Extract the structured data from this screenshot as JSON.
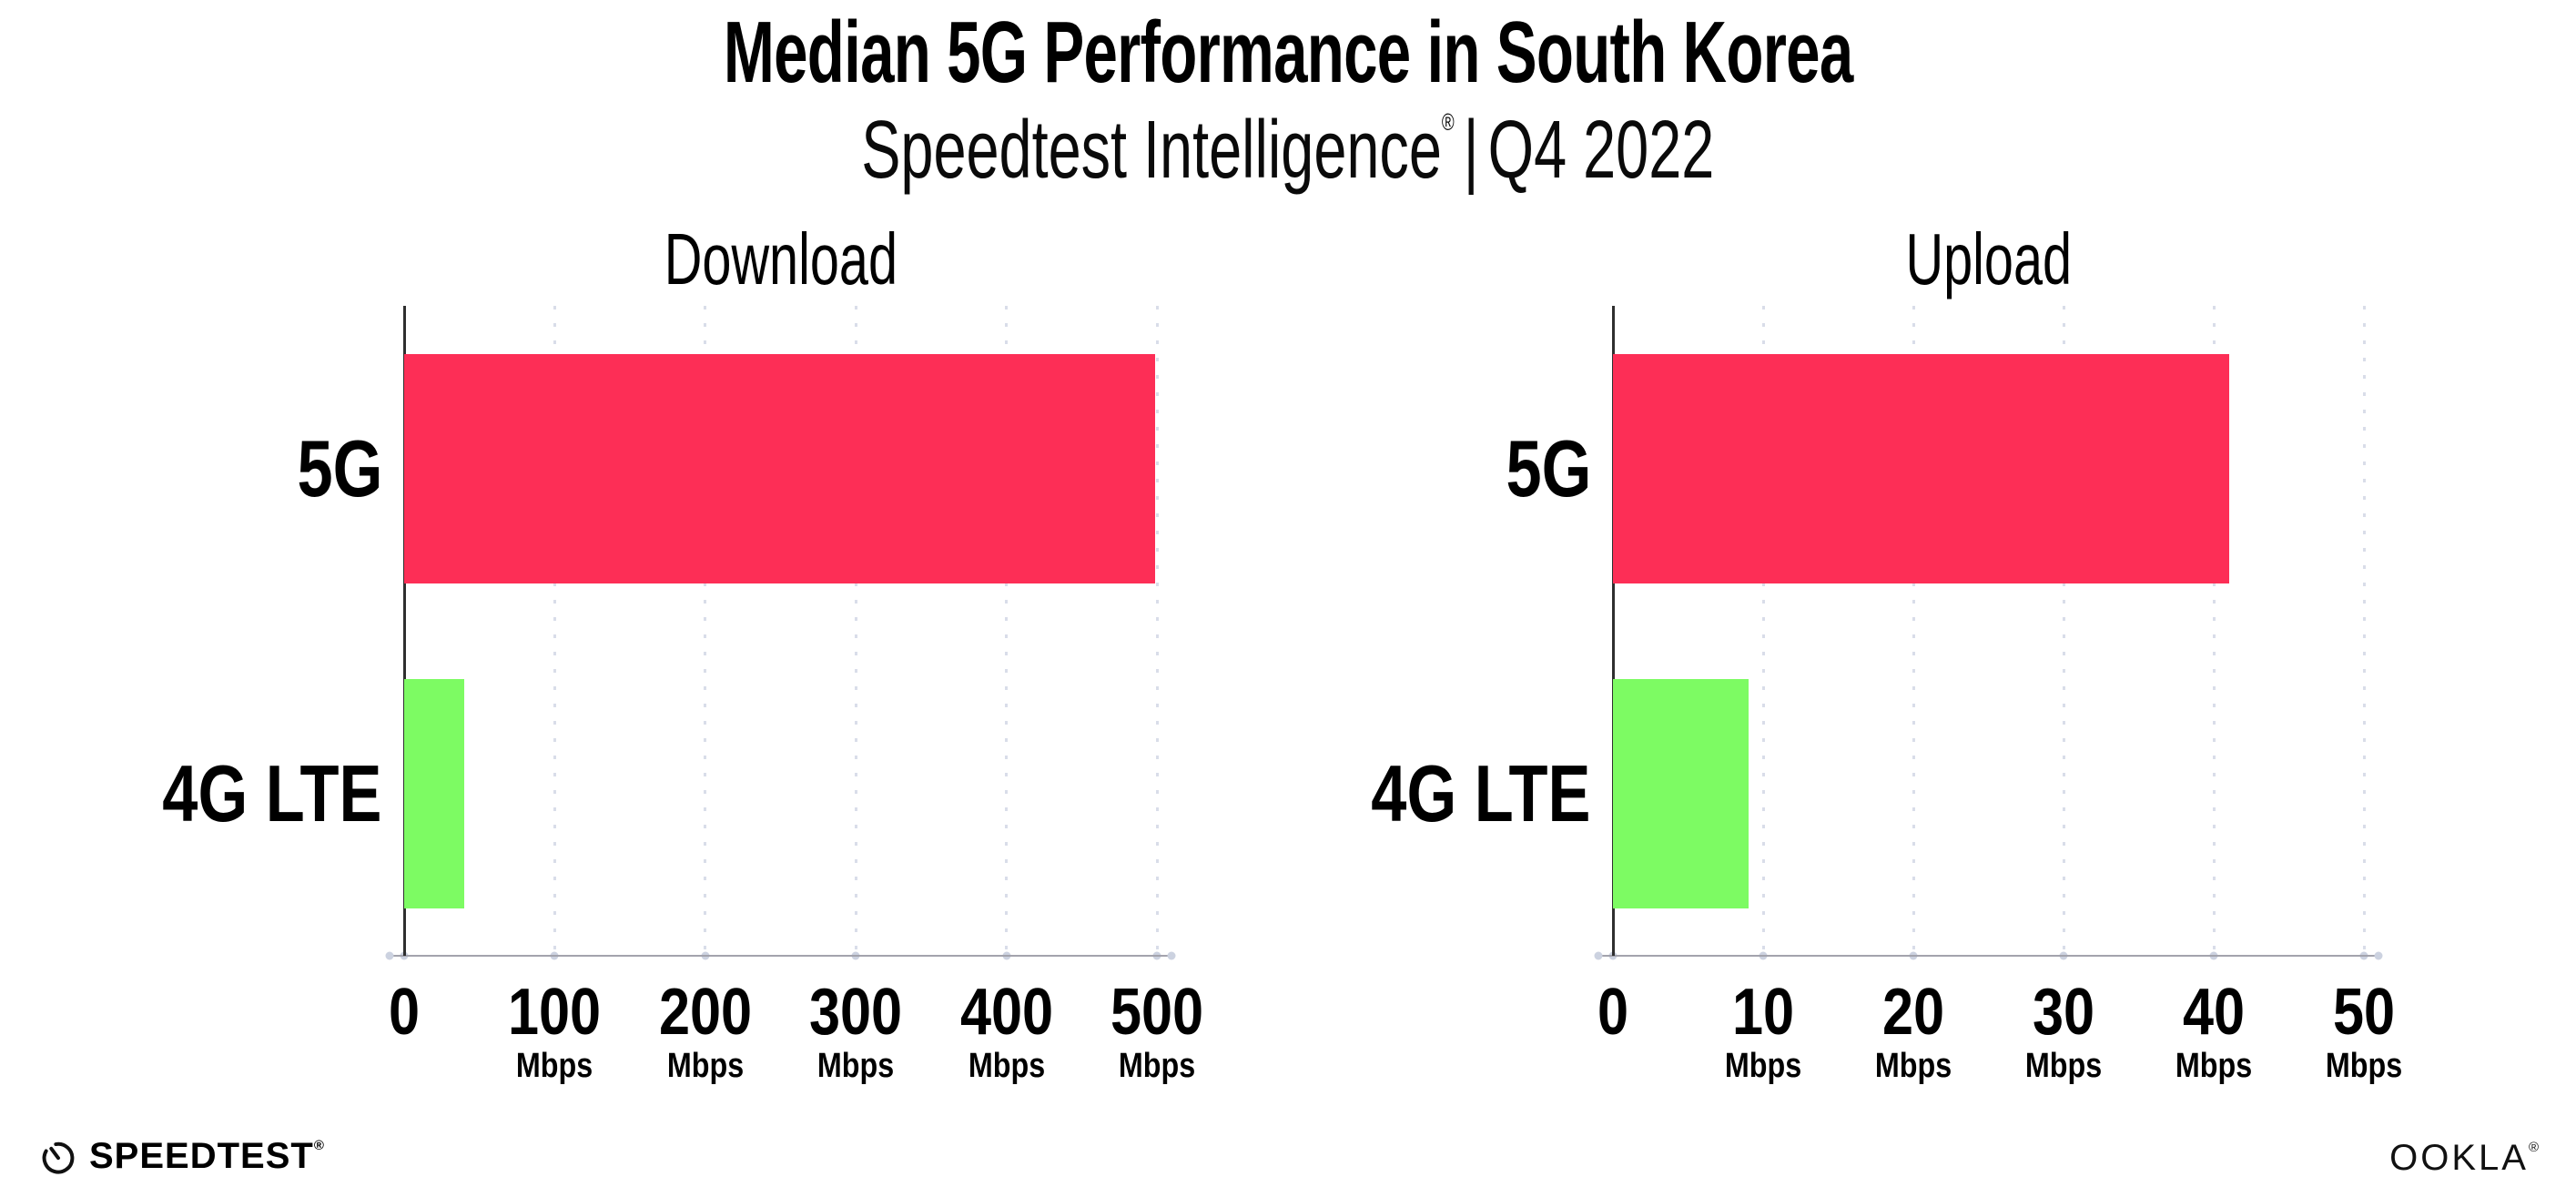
{
  "header": {
    "title": "Median 5G Performance in South Korea",
    "subtitle_brand": "Speedtest Intelligence",
    "subtitle_reg": "®",
    "subtitle_divider": "|",
    "subtitle_period": "Q4 2022"
  },
  "chart_data": [
    {
      "type": "bar",
      "orientation": "horizontal",
      "title": "Download",
      "categories": [
        "5G",
        "4G LTE"
      ],
      "values": [
        499,
        40
      ],
      "unit": "Mbps",
      "xlabel": "",
      "ylabel": "",
      "xlim": [
        0,
        500
      ],
      "ticks": [
        0,
        100,
        200,
        300,
        400,
        500
      ],
      "tick_labels": [
        "0",
        "100",
        "200",
        "300",
        "400",
        "500"
      ],
      "bar_colors": [
        "#fd2e56",
        "#7dfb63"
      ],
      "grid": "dotted-vertical",
      "legend": "none"
    },
    {
      "type": "bar",
      "orientation": "horizontal",
      "title": "Upload",
      "categories": [
        "5G",
        "4G LTE"
      ],
      "values": [
        41,
        9
      ],
      "unit": "Mbps",
      "xlabel": "",
      "ylabel": "",
      "xlim": [
        0,
        50
      ],
      "ticks": [
        0,
        10,
        20,
        30,
        40,
        50
      ],
      "tick_labels": [
        "0",
        "10",
        "20",
        "30",
        "40",
        "50"
      ],
      "bar_colors": [
        "#fd2e56",
        "#7dfb63"
      ],
      "grid": "dotted-vertical",
      "legend": "none"
    }
  ],
  "colors": {
    "bar_5g": "#fd2e56",
    "bar_4g_lte": "#7dfb63",
    "axis": "#2f2f2f",
    "baseline": "#a3a3ad",
    "grid_dot": "#d9dde9",
    "text": "#000000"
  },
  "footer": {
    "speedtest_label": "SPEEDTEST",
    "ookla_label": "OOKLA",
    "reg_mark": "®"
  }
}
